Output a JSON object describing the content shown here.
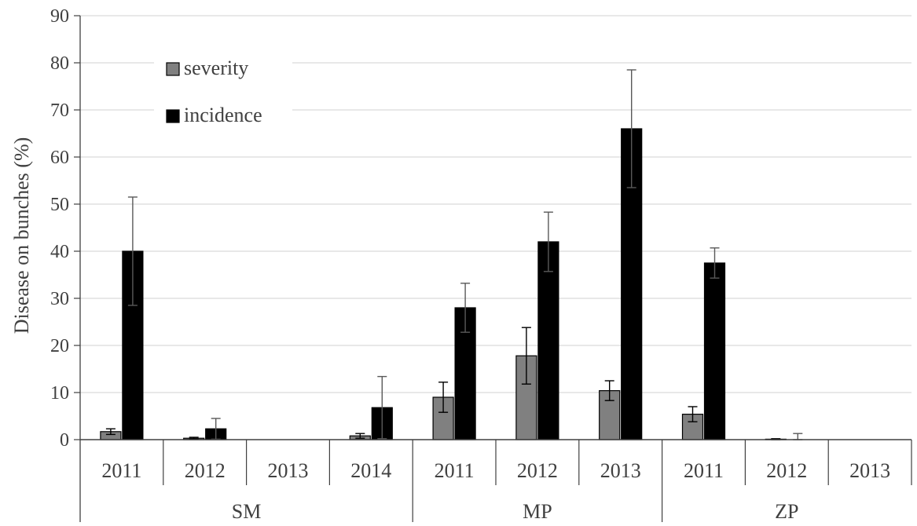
{
  "chart_data": {
    "type": "bar",
    "title": "",
    "xlabel": "",
    "ylabel": "Disease on bunches (%)",
    "ylim": [
      0,
      90
    ],
    "yticks": [
      0,
      10,
      20,
      30,
      40,
      50,
      60,
      70,
      80,
      90
    ],
    "grid": true,
    "legend_position": "top-left",
    "groups": [
      {
        "name": "SM",
        "categories": [
          "2011",
          "2012",
          "2013",
          "2014"
        ]
      },
      {
        "name": "MP",
        "categories": [
          "2011",
          "2012",
          "2013"
        ]
      },
      {
        "name": "ZP",
        "categories": [
          "2011",
          "2012",
          "2013"
        ]
      }
    ],
    "series": [
      {
        "name": "severity",
        "color": "#808080",
        "values": [
          1.7,
          0.3,
          0,
          0.8,
          9.0,
          17.8,
          10.4,
          5.4,
          0.1,
          0
        ],
        "errors": [
          0.6,
          0.2,
          0,
          0.5,
          3.2,
          6.0,
          2.1,
          1.6,
          0.1,
          0
        ]
      },
      {
        "name": "incidence",
        "color": "#000000",
        "values": [
          40.0,
          2.3,
          0,
          6.8,
          28.0,
          42.0,
          66.0,
          37.5,
          0,
          0
        ],
        "errors": [
          11.5,
          2.2,
          0,
          6.6,
          5.2,
          6.3,
          12.5,
          3.2,
          1.3,
          0
        ]
      }
    ]
  }
}
